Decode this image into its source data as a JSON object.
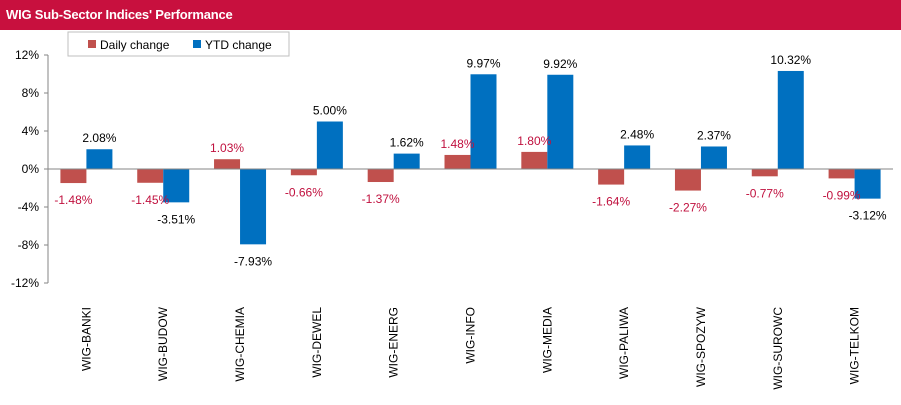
{
  "header": {
    "title": "WIG Sub-Sector Indices' Performance"
  },
  "colors": {
    "title_bar": "#c8103e",
    "daily": "#c0504d",
    "ytd": "#0070c0",
    "daily_label": "#c0103e",
    "ytd_label": "#000000"
  },
  "chart_data": {
    "type": "bar",
    "title": "WIG Sub-Sector Indices' Performance",
    "categories": [
      "WIG-BANKI",
      "WIG-BUDOW",
      "WIG-CHEMIA",
      "WIG-DEWEL",
      "WIG-ENERG",
      "WIG-INFO",
      "WIG-MEDIA",
      "WIG-PALIWA",
      "WIG-SPOZYW",
      "WIG-SUROWC",
      "WIG-TELKOM"
    ],
    "series": [
      {
        "name": "Daily change",
        "color": "#c0504d",
        "values": [
          -1.48,
          -1.45,
          1.03,
          -0.66,
          -1.37,
          1.48,
          1.8,
          -1.64,
          -2.27,
          -0.77,
          -0.99
        ],
        "labels": [
          "-1.48%",
          "-1.45%",
          "1.03%",
          "-0.66%",
          "-1.37%",
          "1.48%",
          "1.80%",
          "-1.64%",
          "-2.27%",
          "-0.77%",
          "-0.99%"
        ]
      },
      {
        "name": "YTD change",
        "color": "#0070c0",
        "values": [
          2.08,
          -3.51,
          -7.93,
          5.0,
          1.62,
          9.97,
          9.92,
          2.48,
          2.37,
          10.32,
          -3.12
        ],
        "labels": [
          "2.08%",
          "-3.51%",
          "-7.93%",
          "5.00%",
          "1.62%",
          "9.97%",
          "9.92%",
          "2.48%",
          "2.37%",
          "10.32%",
          "-3.12%"
        ]
      }
    ],
    "yticks": [
      12,
      8,
      4,
      0,
      -4,
      -8,
      -12
    ],
    "ytick_labels": [
      "12%",
      "8%",
      "4%",
      "0%",
      "-4%",
      "-8%",
      "-12%"
    ],
    "ylim": [
      -12,
      12
    ],
    "legend_position": "top-left",
    "grid": false
  }
}
